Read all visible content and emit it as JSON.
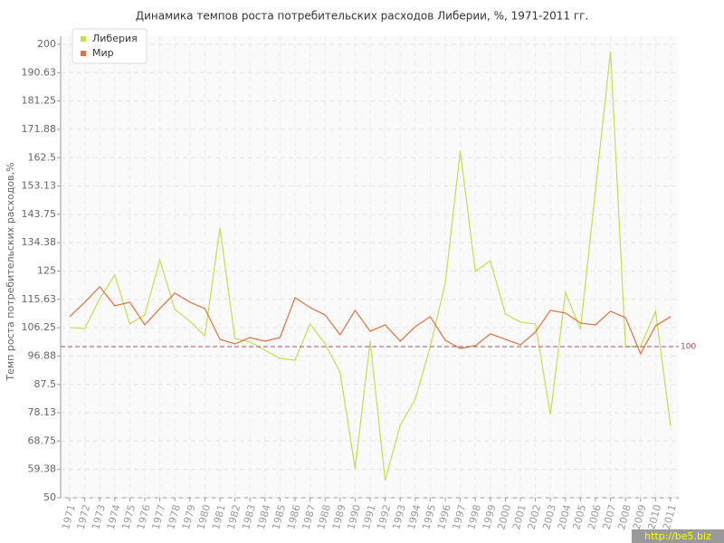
{
  "chart_data": {
    "type": "line",
    "title": "Динамика темпов роста потребительских расходов Либерии, %, 1971-2011 гг.",
    "y_label": "Темп роста потребительских расходов,%",
    "categories": [
      "1971",
      "1972",
      "1973",
      "1974",
      "1975",
      "1976",
      "1977",
      "1978",
      "1979",
      "1980",
      "1981",
      "1982",
      "1983",
      "1984",
      "1985",
      "1986",
      "1987",
      "1988",
      "1989",
      "1990",
      "1991",
      "1992",
      "1993",
      "1994",
      "1995",
      "1996",
      "1997",
      "1998",
      "1999",
      "2000",
      "2001",
      "2002",
      "2003",
      "2004",
      "2005",
      "2006",
      "2007",
      "2008",
      "2009",
      "2010",
      "2011"
    ],
    "series": [
      {
        "name": "Либерия",
        "color": "#c3df4f",
        "values": [
          106.3,
          106,
          115.9,
          123.7,
          107.5,
          110.5,
          128.7,
          112.3,
          108.4,
          103.6,
          139.2,
          102.7,
          101.5,
          98.8,
          96.1,
          95.5,
          107.5,
          100.9,
          91.6,
          59.6,
          101.8,
          55.7,
          74,
          82.6,
          100,
          121,
          164.7,
          124.9,
          128.4,
          110.8,
          108.1,
          107.5,
          77.5,
          118,
          105.7,
          151.8,
          197.6,
          100,
          100,
          111.7,
          73.7
        ]
      },
      {
        "name": "Мир",
        "color": "#e0703f",
        "values": [
          109.9,
          114.7,
          119.8,
          113.5,
          114.7,
          107.2,
          112.6,
          117.7,
          114.7,
          112.6,
          102.4,
          100.9,
          103,
          101.8,
          103,
          116.2,
          112.9,
          110.5,
          103.9,
          112,
          105.1,
          107.2,
          101.8,
          106.6,
          109.9,
          102.1,
          99.4,
          100.3,
          104.2,
          102.4,
          100.6,
          104.8,
          112,
          111.1,
          107.8,
          107.2,
          111.7,
          109.6,
          97.6,
          106.9,
          109.9
        ]
      }
    ],
    "ylim": [
      50,
      200
    ],
    "yticks": [
      50,
      59.38,
      68.75,
      78.13,
      87.5,
      96.88,
      106.25,
      115.63,
      125,
      134.38,
      143.75,
      153.13,
      162.5,
      171.88,
      181.25,
      190.63,
      200
    ],
    "reference_line": 100,
    "reference_color": "#a84a6a",
    "grid": true,
    "legend": "top-left",
    "watermark": "http://be5.biz"
  }
}
